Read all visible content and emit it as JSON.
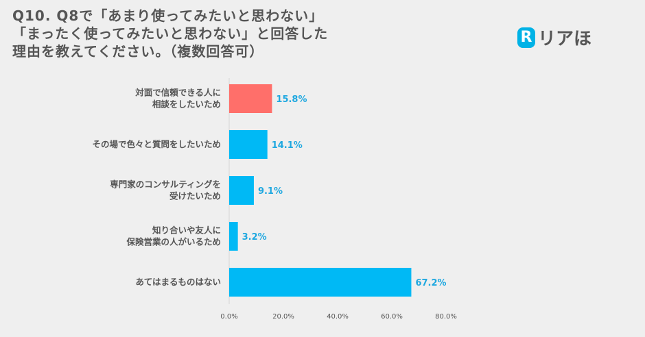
{
  "title_lines": [
    "Q10. Q8で「あまり使ってみたいと思わない」",
    "「まったく使ってみたいと思わない」と回答した",
    "理由を教えてください。（複数回答可）"
  ],
  "logo": {
    "mark": "R",
    "text": "リアほ"
  },
  "colors": {
    "highlight": "#ff6f6a",
    "bar": "#00b9f5",
    "value_text": "#1fa8e0"
  },
  "chart_data": {
    "type": "bar",
    "orientation": "horizontal",
    "categories": [
      [
        "対面で信頼できる人に",
        "相談をしたいため"
      ],
      [
        "その場で色々と質問をしたいため"
      ],
      [
        "専門家のコンサルティングを",
        "受けたいため"
      ],
      [
        "知り合いや友人に",
        "保険営業の人がいるため"
      ],
      [
        "あてはまるものはない"
      ]
    ],
    "values": [
      15.8,
      14.1,
      9.1,
      3.2,
      67.2
    ],
    "value_labels": [
      "15.8%",
      "14.1%",
      "9.1%",
      "3.2%",
      "67.2%"
    ],
    "highlight_index": 0,
    "xlim": [
      0,
      80
    ],
    "xticks": [
      0,
      20,
      40,
      60,
      80
    ],
    "xtick_labels": [
      "0.0%",
      "20.0%",
      "40.0%",
      "60.0%",
      "80.0%"
    ],
    "grid": false
  }
}
